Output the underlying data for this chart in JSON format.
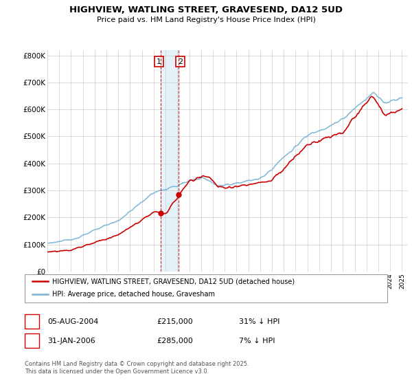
{
  "title": "HIGHVIEW, WATLING STREET, GRAVESEND, DA12 5UD",
  "subtitle": "Price paid vs. HM Land Registry's House Price Index (HPI)",
  "legend_line1": "HIGHVIEW, WATLING STREET, GRAVESEND, DA12 5UD (detached house)",
  "legend_line2": "HPI: Average price, detached house, Gravesham",
  "table_row1": [
    "1",
    "05-AUG-2004",
    "£215,000",
    "31% ↓ HPI"
  ],
  "table_row2": [
    "2",
    "31-JAN-2006",
    "£285,000",
    "7% ↓ HPI"
  ],
  "footer": "Contains HM Land Registry data © Crown copyright and database right 2025.\nThis data is licensed under the Open Government Licence v3.0.",
  "hpi_color": "#7ab3d4",
  "price_color": "#cc0000",
  "vline_color": "#cc0000",
  "marker1_year": 2004.59,
  "marker1_price": 215000,
  "marker2_year": 2006.08,
  "marker2_price": 285000,
  "ylim": [
    0,
    820000
  ],
  "yticks": [
    0,
    100000,
    200000,
    300000,
    400000,
    500000,
    600000,
    700000,
    800000
  ],
  "ytick_labels": [
    "£0",
    "£100K",
    "£200K",
    "£300K",
    "£400K",
    "£500K",
    "£600K",
    "£700K",
    "£800K"
  ],
  "background_color": "#ffffff",
  "grid_color": "#cccccc"
}
